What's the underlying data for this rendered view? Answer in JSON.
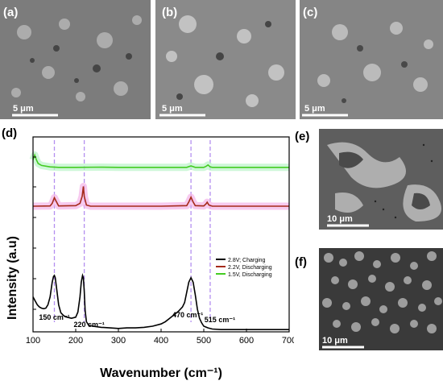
{
  "panels": {
    "a": {
      "label": "(a)",
      "scale": "5 μm"
    },
    "b": {
      "label": "(b)",
      "scale": "5 μm"
    },
    "c": {
      "label": "(c)",
      "scale": "5 μm"
    },
    "d": {
      "label": "(d)"
    },
    "e": {
      "label": "(e)",
      "scale": "10 μm"
    },
    "f": {
      "label": "(f)",
      "scale": "10 μm"
    }
  },
  "chart_data": {
    "type": "line",
    "xlabel": "Wavenumber (cm⁻¹)",
    "ylabel": "Intensity (a.u)",
    "xlim": [
      100,
      700
    ],
    "xticks": [
      100,
      200,
      300,
      400,
      500,
      600,
      700
    ],
    "grid": false,
    "legend_position": "right",
    "peak_lines": [
      150,
      220,
      470,
      515
    ],
    "annotations": [
      {
        "x": 150,
        "text": "150 cm⁻¹"
      },
      {
        "x": 220,
        "text": "220 cm⁻¹"
      },
      {
        "x": 470,
        "text": "470 cm⁻¹"
      },
      {
        "x": 515,
        "text": "515 cm⁻¹"
      }
    ],
    "series": [
      {
        "name": "2.8V; Charging",
        "color": "#000000",
        "x": [
          100,
          105,
          110,
          115,
          120,
          125,
          130,
          135,
          140,
          145,
          148,
          150,
          152,
          155,
          160,
          165,
          170,
          175,
          180,
          190,
          200,
          205,
          210,
          213,
          216,
          218,
          220,
          222,
          225,
          230,
          240,
          260,
          280,
          300,
          320,
          340,
          360,
          380,
          400,
          410,
          420,
          430,
          440,
          450,
          455,
          460,
          465,
          470,
          475,
          480,
          485,
          490,
          495,
          500,
          510,
          520,
          540,
          560,
          580,
          600,
          620,
          640,
          660,
          680,
          700
        ],
        "y": [
          0.62,
          0.55,
          0.48,
          0.44,
          0.42,
          0.41,
          0.42,
          0.48,
          0.62,
          0.88,
          0.98,
          1.0,
          0.96,
          0.78,
          0.48,
          0.34,
          0.3,
          0.27,
          0.26,
          0.24,
          0.26,
          0.35,
          0.62,
          0.88,
          1.0,
          0.96,
          0.72,
          0.38,
          0.18,
          0.12,
          0.1,
          0.08,
          0.07,
          0.06,
          0.07,
          0.07,
          0.08,
          0.1,
          0.14,
          0.18,
          0.24,
          0.3,
          0.36,
          0.44,
          0.52,
          0.7,
          0.88,
          0.96,
          0.88,
          0.66,
          0.4,
          0.24,
          0.16,
          0.1,
          0.07,
          0.05,
          0.04,
          0.04,
          0.04,
          0.04,
          0.04,
          0.04,
          0.04,
          0.04,
          0.04
        ]
      },
      {
        "name": "2.2V, Discharging",
        "color": "#a52a1a",
        "x": [
          100,
          140,
          145,
          150,
          155,
          160,
          200,
          210,
          215,
          218,
          220,
          225,
          235,
          300,
          400,
          460,
          465,
          470,
          475,
          480,
          500,
          505,
          508,
          512,
          520,
          600,
          700
        ],
        "y": [
          0.2,
          0.21,
          0.3,
          0.5,
          0.35,
          0.21,
          0.22,
          0.3,
          0.55,
          0.9,
          0.55,
          0.24,
          0.2,
          0.2,
          0.2,
          0.22,
          0.35,
          0.52,
          0.35,
          0.22,
          0.21,
          0.28,
          0.34,
          0.24,
          0.2,
          0.2,
          0.2
        ]
      },
      {
        "name": "1.5V, Discharging",
        "color": "#44cc22",
        "x": [
          100,
          104,
          108,
          112,
          120,
          140,
          160,
          200,
          260,
          300,
          400,
          460,
          470,
          480,
          500,
          505,
          510,
          515,
          520,
          600,
          700
        ],
        "y": [
          0.55,
          0.75,
          0.55,
          0.4,
          0.32,
          0.26,
          0.24,
          0.24,
          0.25,
          0.24,
          0.24,
          0.24,
          0.3,
          0.24,
          0.24,
          0.28,
          0.34,
          0.26,
          0.24,
          0.24,
          0.24
        ]
      }
    ]
  }
}
